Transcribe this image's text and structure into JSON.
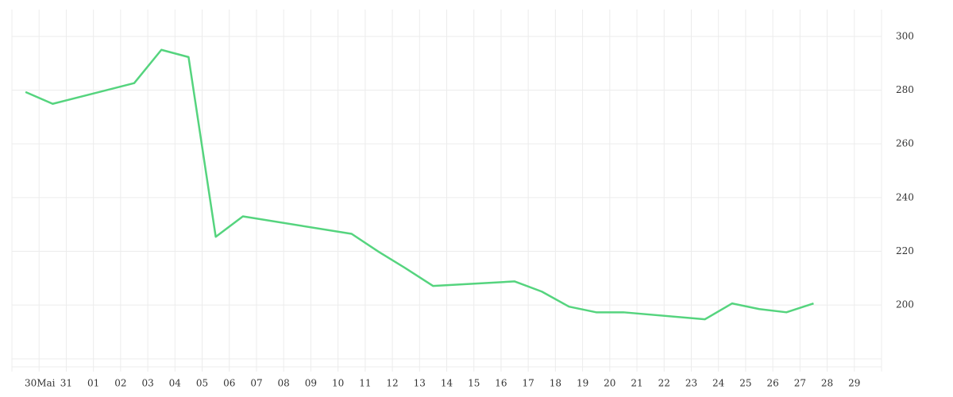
{
  "chart_data": {
    "type": "line",
    "xlim": [
      -1,
      31
    ],
    "xticks": [
      {
        "value": 0,
        "label": "30"
      },
      {
        "value": 1,
        "label": "31"
      },
      {
        "value": 2,
        "label": "01"
      },
      {
        "value": 3,
        "label": "02"
      },
      {
        "value": 4,
        "label": "03"
      },
      {
        "value": 5,
        "label": "04"
      },
      {
        "value": 6,
        "label": "05"
      },
      {
        "value": 7,
        "label": "06"
      },
      {
        "value": 8,
        "label": "07"
      },
      {
        "value": 9,
        "label": "08"
      },
      {
        "value": 10,
        "label": "09"
      },
      {
        "value": 11,
        "label": "10"
      },
      {
        "value": 12,
        "label": "11"
      },
      {
        "value": 13,
        "label": "12"
      },
      {
        "value": 14,
        "label": "13"
      },
      {
        "value": 15,
        "label": "14"
      },
      {
        "value": 16,
        "label": "15"
      },
      {
        "value": 17,
        "label": "16"
      },
      {
        "value": 18,
        "label": "17"
      },
      {
        "value": 19,
        "label": "18"
      },
      {
        "value": 20,
        "label": "19"
      },
      {
        "value": 21,
        "label": "20"
      },
      {
        "value": 22,
        "label": "21"
      },
      {
        "value": 23,
        "label": "22"
      },
      {
        "value": 24,
        "label": "23"
      },
      {
        "value": 25,
        "label": "24"
      },
      {
        "value": 26,
        "label": "25"
      },
      {
        "value": 27,
        "label": "26"
      },
      {
        "value": 28,
        "label": "27"
      },
      {
        "value": 29,
        "label": "28"
      },
      {
        "value": 30,
        "label": "29"
      }
    ],
    "month_labels": [
      {
        "value": 0,
        "label": "Mai"
      }
    ],
    "ylim": [
      177,
      310
    ],
    "yticks": [
      200,
      220,
      240,
      260,
      280,
      300
    ],
    "grid": true,
    "x": [
      -0.5,
      0.5,
      3.5,
      4.5,
      5.5,
      6.5,
      7.5,
      11.5,
      12.5,
      13.5,
      14.5,
      17.5,
      18.5,
      19.5,
      20.5,
      21.5,
      24.5,
      25.5,
      26.5,
      27.5,
      28.5
    ],
    "series": [
      {
        "color": "#55d47e",
        "values": [
          279.3,
          274.9,
          282.6,
          295,
          292.3,
          225.4,
          233,
          226.5,
          219.8,
          213.6,
          207.1,
          208.8,
          205,
          199.4,
          197.3,
          197.3,
          194.7,
          200.6,
          198.5,
          197.3,
          200.6
        ]
      }
    ]
  }
}
